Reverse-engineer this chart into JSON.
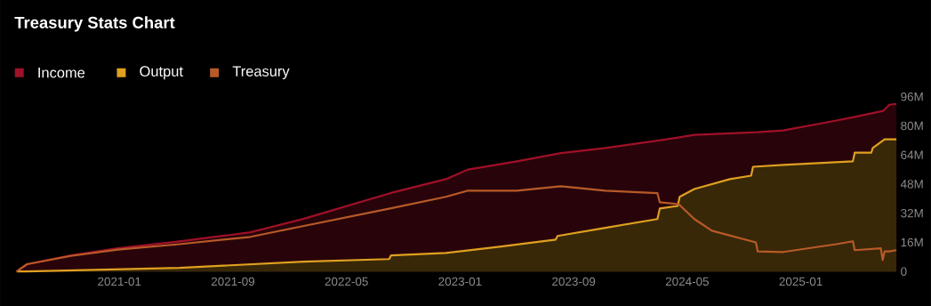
{
  "chart_data": {
    "type": "area",
    "title": "Treasury Stats Chart",
    "xlim": [
      "2020-05-24",
      "2025-07-23"
    ],
    "xticks": [
      "2021-01",
      "2021-09",
      "2022-05",
      "2023-01",
      "2023-09",
      "2024-05",
      "2025-01"
    ],
    "ylim": [
      0,
      96
    ],
    "yticks": [
      0,
      {
        "value": 16,
        "label": "16M"
      },
      {
        "value": 32,
        "label": "32M"
      },
      {
        "value": 48,
        "label": "48M"
      },
      {
        "value": 64,
        "label": "64M"
      },
      {
        "value": 80,
        "label": "80M"
      },
      {
        "value": 96,
        "label": "96M"
      }
    ],
    "grid": false,
    "legend": "top left",
    "marker": "none",
    "series": [
      {
        "name": "Income",
        "color": "#a01028",
        "x": [
          "2020-05-24",
          "2020-06-16",
          "2020-09-18",
          "2020-12-28",
          "2021-05-08",
          "2021-10-08",
          "2022-02-01",
          "2022-08-03",
          "2022-12-01",
          "2023-01-18",
          "2023-05-01",
          "2023-08-04",
          "2023-11-08",
          "2024-03-01",
          "2024-05-16",
          "2024-09-28",
          "2024-11-24",
          "2025-03-16",
          "2025-04-23",
          "2025-06-25",
          "2025-07-08",
          "2025-07-23"
        ],
        "values": [
          0,
          4,
          8.8,
          12.7,
          16.5,
          21.5,
          29,
          43,
          50.7,
          56,
          60.5,
          65,
          67.8,
          72,
          75,
          76.5,
          77.5,
          82.9,
          84.8,
          88.2,
          91.6,
          92
        ]
      },
      {
        "name": "Output",
        "color": "#e0a020",
        "x": [
          "2020-05-24",
          "2020-06-16",
          "2021-05-08",
          "2022-02-01",
          "2022-08-01",
          "2022-08-05",
          "2022-12-01",
          "2023-03-24",
          "2023-07-23",
          "2023-07-27",
          "2023-11-08",
          "2024-02-28",
          "2024-03-03",
          "2024-04-11",
          "2024-04-15",
          "2024-05-16",
          "2024-08-01",
          "2024-09-16",
          "2024-09-20",
          "2024-11-24",
          "2025-04-21",
          "2025-04-25",
          "2025-05-30",
          "2025-06-03",
          "2025-06-28",
          "2025-07-23"
        ],
        "values": [
          0,
          0,
          2,
          5.4,
          6.8,
          8.8,
          10.2,
          13.6,
          17.5,
          19.5,
          24,
          28.8,
          34.6,
          36,
          41,
          45.3,
          50.7,
          52.6,
          57.5,
          58.5,
          60.5,
          65.3,
          65.3,
          67.8,
          72.6,
          72.6
        ]
      },
      {
        "name": "Treasury",
        "type": "line",
        "color": "#b85a28",
        "x": [
          "2020-05-24",
          "2020-06-16",
          "2020-09-18",
          "2020-12-28",
          "2021-05-08",
          "2021-10-08",
          "2022-02-01",
          "2022-08-03",
          "2022-12-01",
          "2023-01-18",
          "2023-05-01",
          "2023-08-04",
          "2023-11-08",
          "2024-02-28",
          "2024-03-03",
          "2024-04-13",
          "2024-05-16",
          "2024-06-23",
          "2024-09-26",
          "2024-09-30",
          "2024-11-24",
          "2025-03-16",
          "2025-04-21",
          "2025-04-25",
          "2025-06-20",
          "2025-06-24",
          "2025-06-28",
          "2025-07-08",
          "2025-07-23"
        ],
        "values": [
          0,
          4,
          8.5,
          12,
          15,
          19,
          25,
          34.6,
          41,
          44.4,
          44.4,
          46.8,
          44.4,
          43,
          38,
          37,
          28.8,
          22.4,
          16,
          11,
          10.7,
          15,
          16.6,
          11.7,
          12.7,
          6.3,
          11,
          11,
          11.7
        ]
      }
    ]
  }
}
